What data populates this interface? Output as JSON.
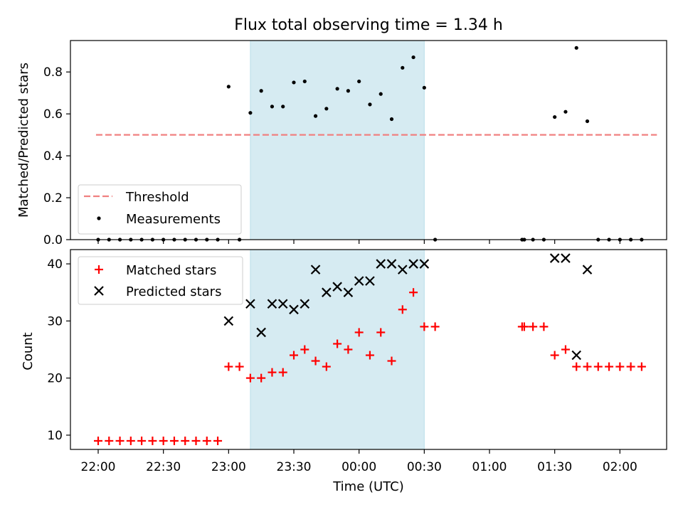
{
  "chart_data": [
    {
      "type": "scatter",
      "title": "Flux total observing time = 1.34 h",
      "xlabel": "",
      "ylabel": "Matched/Predicted stars",
      "ylim": [
        0,
        0.95
      ],
      "yticks": [
        "0.0",
        "0.2",
        "0.4",
        "0.6",
        "0.8"
      ],
      "shaded_region": {
        "start": "23:10",
        "end": "00:30",
        "color": "#add8e6"
      },
      "legend": {
        "placement": "lower left",
        "entries": [
          "Threshold",
          "Measurements"
        ]
      },
      "series": [
        {
          "name": "Threshold",
          "kind": "dashed-line",
          "color": "#f08080",
          "x": [
            "21:59",
            "02:17"
          ],
          "y": [
            0.5,
            0.5
          ]
        },
        {
          "name": "Measurements",
          "kind": "dot",
          "color": "#000000",
          "x": [
            "22:00",
            "22:05",
            "22:10",
            "22:15",
            "22:20",
            "22:25",
            "22:30",
            "22:35",
            "22:40",
            "22:45",
            "22:50",
            "22:55",
            "23:00",
            "23:05",
            "23:10",
            "23:15",
            "23:20",
            "23:25",
            "23:30",
            "23:35",
            "23:40",
            "23:45",
            "23:50",
            "23:55",
            "00:00",
            "00:05",
            "00:10",
            "00:15",
            "00:20",
            "00:25",
            "00:30",
            "00:35",
            "01:15",
            "01:16",
            "01:20",
            "01:25",
            "01:30",
            "01:35",
            "01:40",
            "01:45",
            "01:50",
            "01:55",
            "02:00",
            "02:05",
            "02:10"
          ],
          "y": [
            0,
            0,
            0,
            0,
            0,
            0,
            0,
            0,
            0,
            0,
            0,
            0,
            0.73,
            0,
            0.605,
            0.71,
            0.635,
            0.635,
            0.75,
            0.755,
            0.59,
            0.625,
            0.72,
            0.71,
            0.755,
            0.645,
            0.695,
            0.575,
            0.82,
            0.87,
            0.725,
            0,
            0,
            0,
            0,
            0,
            0.585,
            0.61,
            0.915,
            0.565,
            0,
            0,
            0,
            0,
            0
          ]
        }
      ]
    },
    {
      "type": "scatter",
      "title": "",
      "xlabel": "Time (UTC)",
      "ylabel": "Count",
      "ylim": [
        7.5,
        42.5
      ],
      "yticks": [
        "10",
        "20",
        "30",
        "40"
      ],
      "xticks": [
        "22:00",
        "22:30",
        "23:00",
        "23:30",
        "00:00",
        "00:30",
        "01:00",
        "01:30",
        "02:00"
      ],
      "shaded_region": {
        "start": "23:10",
        "end": "00:30",
        "color": "#add8e6"
      },
      "legend": {
        "placement": "upper left",
        "entries": [
          "Matched stars",
          "Predicted stars"
        ]
      },
      "series": [
        {
          "name": "Matched stars",
          "kind": "plus",
          "color": "#ff0000",
          "x": [
            "22:00",
            "22:05",
            "22:10",
            "22:15",
            "22:20",
            "22:25",
            "22:30",
            "22:35",
            "22:40",
            "22:45",
            "22:50",
            "22:55",
            "23:00",
            "23:05",
            "23:10",
            "23:15",
            "23:20",
            "23:25",
            "23:30",
            "23:35",
            "23:40",
            "23:45",
            "23:50",
            "23:55",
            "00:00",
            "00:05",
            "00:10",
            "00:15",
            "00:20",
            "00:25",
            "00:30",
            "00:35",
            "01:15",
            "01:16",
            "01:20",
            "01:25",
            "01:30",
            "01:35",
            "01:40",
            "01:45",
            "01:50",
            "01:55",
            "02:00",
            "02:05",
            "02:10"
          ],
          "y": [
            9,
            9,
            9,
            9,
            9,
            9,
            9,
            9,
            9,
            9,
            9,
            9,
            22,
            22,
            20,
            20,
            21,
            21,
            24,
            25,
            23,
            22,
            26,
            25,
            28,
            24,
            28,
            23,
            32,
            35,
            29,
            29,
            29,
            29,
            29,
            29,
            24,
            25,
            22,
            22,
            22,
            22,
            22,
            22,
            22
          ]
        },
        {
          "name": "Predicted stars",
          "kind": "cross",
          "color": "#000000",
          "x": [
            "23:00",
            "23:10",
            "23:15",
            "23:20",
            "23:25",
            "23:30",
            "23:35",
            "23:40",
            "23:45",
            "23:50",
            "23:55",
            "00:00",
            "00:05",
            "00:10",
            "00:15",
            "00:20",
            "00:25",
            "00:30",
            "01:30",
            "01:35",
            "01:40",
            "01:45"
          ],
          "y": [
            30,
            33,
            28,
            33,
            33,
            32,
            33,
            39,
            35,
            36,
            35,
            37,
            37,
            40,
            40,
            39,
            40,
            40,
            41,
            41,
            24,
            39
          ]
        }
      ]
    }
  ]
}
